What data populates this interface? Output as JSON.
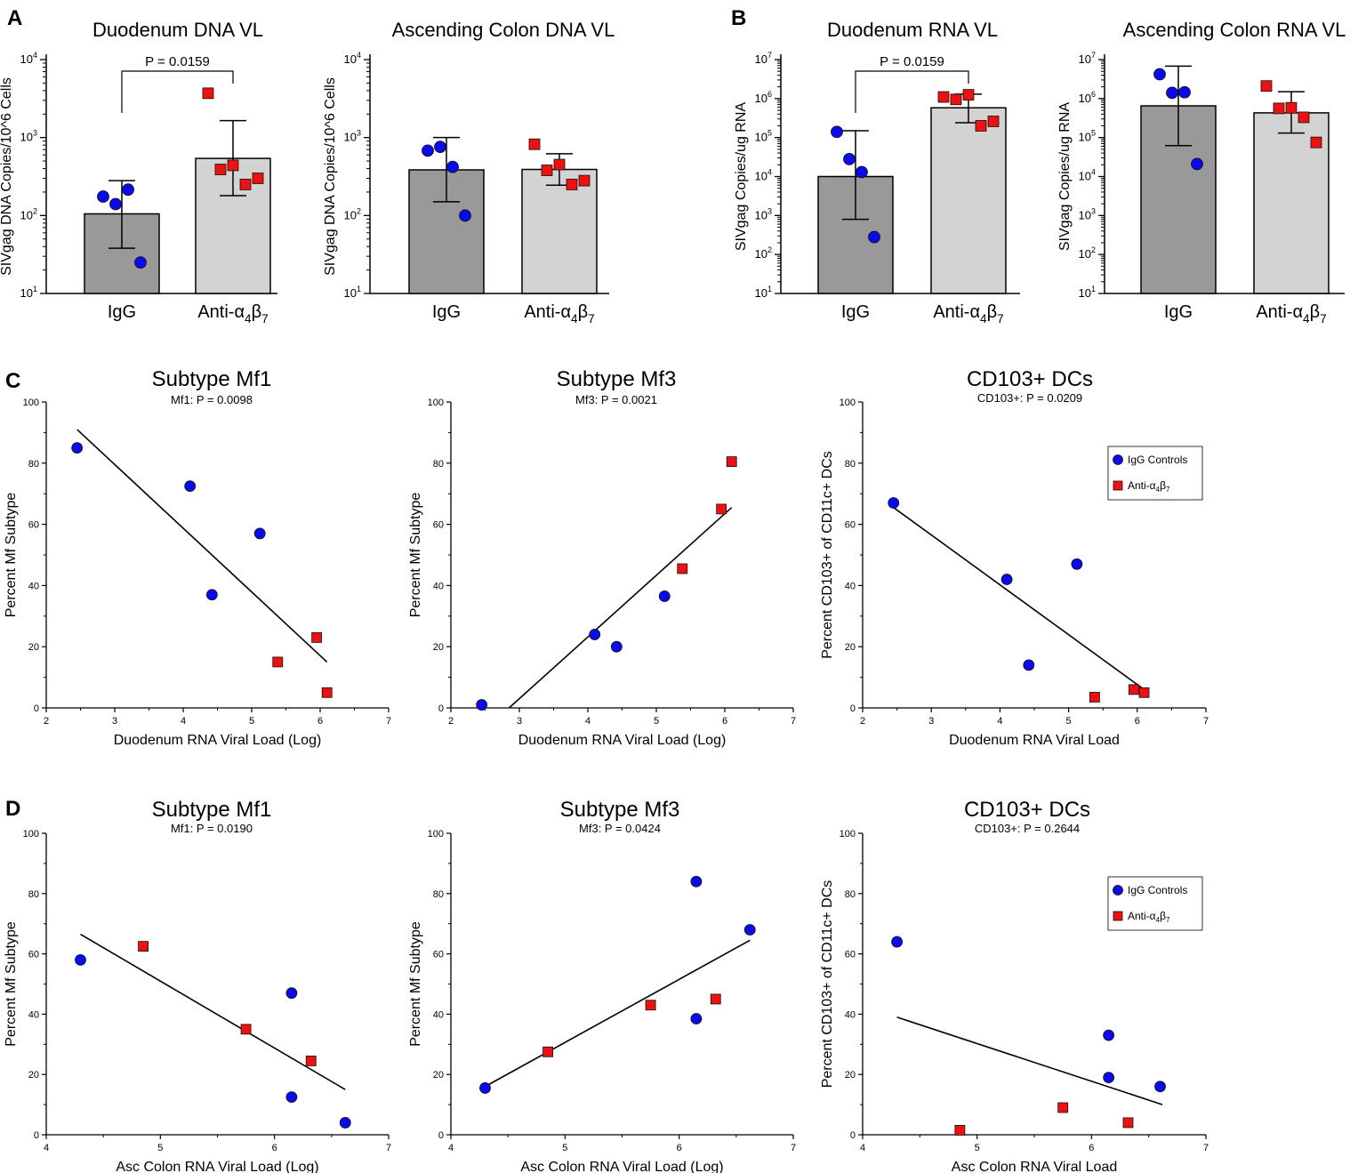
{
  "figure": {
    "colors": {
      "igg_bar": "#999999",
      "anti_bar": "#d3d3d3",
      "igg_marker": "#0a0aea",
      "anti_marker": "#ee1111",
      "axis": "#000000"
    },
    "markers": {
      "igg": "circle",
      "anti": "square"
    }
  },
  "chart_data": [
    {
      "id": "a1",
      "type": "bar",
      "panel_label": "A",
      "title": "Duodenum DNA VL",
      "ylabel": "SIVgag DNA Copies/10^6 Cells",
      "yscale": "log",
      "ylim_exp": [
        1,
        4
      ],
      "categories": [
        "IgG",
        "Anti-α4β7"
      ],
      "bars": [
        {
          "mean": 105,
          "err_lo": 38,
          "err_hi": 280,
          "points": [
            175,
            140,
            215,
            25
          ]
        },
        {
          "mean": 540,
          "err_lo": 180,
          "err_hi": 1650,
          "points": [
            3700,
            390,
            440,
            250,
            300
          ]
        }
      ],
      "annotation": "P = 0.0159"
    },
    {
      "id": "a2",
      "type": "bar",
      "title": "Ascending Colon DNA VL",
      "ylabel": "SIVgag DNA Copies/10^6 Cells",
      "yscale": "log",
      "ylim_exp": [
        1,
        4
      ],
      "categories": [
        "IgG",
        "Anti-α4β7"
      ],
      "bars": [
        {
          "mean": 385,
          "err_lo": 150,
          "err_hi": 1000,
          "points": [
            680,
            760,
            420,
            100
          ]
        },
        {
          "mean": 390,
          "err_lo": 245,
          "err_hi": 620,
          "points": [
            820,
            380,
            450,
            250,
            280
          ]
        }
      ]
    },
    {
      "id": "b1",
      "type": "bar",
      "panel_label": "B",
      "title": "Duodenum RNA VL",
      "ylabel": "SIVgag Copies/ug RNA",
      "yscale": "log",
      "ylim_exp": [
        1,
        7
      ],
      "categories": [
        "IgG",
        "Anti-α4β7"
      ],
      "bars": [
        {
          "mean": 10000,
          "err_lo": 800,
          "err_hi": 150000,
          "points": [
            140000,
            28000,
            13000,
            280
          ]
        },
        {
          "mean": 580000,
          "err_lo": 240000,
          "err_hi": 1300000,
          "points": [
            1100000,
            950000,
            1250000,
            200000,
            260000
          ]
        }
      ],
      "annotation": "P = 0.0159"
    },
    {
      "id": "b2",
      "type": "bar",
      "title": "Ascending Colon RNA VL",
      "ylabel": "SIVgag Copies/ug RNA",
      "yscale": "log",
      "ylim_exp": [
        1,
        7
      ],
      "categories": [
        "IgG",
        "Anti-α4β7"
      ],
      "bars": [
        {
          "mean": 650000,
          "err_lo": 62000,
          "err_hi": 6800000,
          "points": [
            4200000,
            1400000,
            1450000,
            21000
          ]
        },
        {
          "mean": 430000,
          "err_lo": 130000,
          "err_hi": 1500000,
          "points": [
            2100000,
            560000,
            580000,
            330000,
            75000
          ]
        }
      ]
    },
    {
      "id": "c1",
      "type": "scatter",
      "panel_label": "C",
      "title": "Subtype Mf1",
      "subtitle": "Mf1: P = 0.0098",
      "xlabel": "Duodenum RNA Viral Load (Log)",
      "ylabel": "Percent Mf Subtype",
      "xlim": [
        2,
        7
      ],
      "xticks": [
        2,
        3,
        4,
        5,
        6,
        7
      ],
      "ylim": [
        0,
        100
      ],
      "yticks": [
        0,
        20,
        40,
        60,
        80,
        100
      ],
      "series": [
        {
          "name": "IgG Controls",
          "points": [
            [
              2.45,
              85
            ],
            [
              4.1,
              72.5
            ],
            [
              4.42,
              37
            ],
            [
              5.12,
              57
            ]
          ]
        },
        {
          "name": "Anti-α4β7",
          "points": [
            [
              5.38,
              15
            ],
            [
              5.95,
              23
            ],
            [
              6.1,
              5
            ]
          ]
        }
      ],
      "fit": [
        [
          2.45,
          91
        ],
        [
          6.1,
          15
        ]
      ]
    },
    {
      "id": "c2",
      "type": "scatter",
      "title": "Subtype Mf3",
      "subtitle": "Mf3: P = 0.0021",
      "xlabel": "Duodenum RNA Viral Load (Log)",
      "ylabel": "Percent Mf Subtype",
      "xlim": [
        2,
        7
      ],
      "xticks": [
        2,
        3,
        4,
        5,
        6,
        7
      ],
      "ylim": [
        0,
        100
      ],
      "yticks": [
        0,
        20,
        40,
        60,
        80,
        100
      ],
      "series": [
        {
          "name": "IgG Controls",
          "points": [
            [
              2.45,
              1
            ],
            [
              4.1,
              24
            ],
            [
              4.42,
              20
            ],
            [
              5.12,
              36.5
            ]
          ]
        },
        {
          "name": "Anti-α4β7",
          "points": [
            [
              5.38,
              45.5
            ],
            [
              5.95,
              65
            ],
            [
              6.1,
              80.5
            ]
          ]
        }
      ],
      "fit": [
        [
          2.85,
          0
        ],
        [
          6.1,
          65.5
        ]
      ]
    },
    {
      "id": "c3",
      "type": "scatter",
      "title": "CD103+ DCs",
      "subtitle": "CD103+: P = 0.0209",
      "xlabel": "Duodenum RNA Viral Load",
      "ylabel": "Percent CD103+ of CD11c+ DCs",
      "xlim": [
        2,
        7
      ],
      "xticks": [
        2,
        3,
        4,
        5,
        6,
        7
      ],
      "ylim": [
        0,
        100
      ],
      "yticks": [
        0,
        20,
        40,
        60,
        80,
        100
      ],
      "series": [
        {
          "name": "IgG Controls",
          "points": [
            [
              2.45,
              67
            ],
            [
              4.1,
              42
            ],
            [
              4.42,
              14
            ],
            [
              5.12,
              47
            ]
          ]
        },
        {
          "name": "Anti-α4β7",
          "points": [
            [
              5.38,
              3.5
            ],
            [
              5.95,
              6
            ],
            [
              6.1,
              5
            ]
          ]
        }
      ],
      "fit": [
        [
          2.45,
          65.5
        ],
        [
          6.1,
          6
        ]
      ],
      "legend": {
        "placement": "top-right",
        "items": [
          "IgG Controls",
          "Anti-α4β7"
        ]
      }
    },
    {
      "id": "d1",
      "type": "scatter",
      "panel_label": "D",
      "title": "Subtype Mf1",
      "subtitle": "Mf1: P = 0.0190",
      "xlabel": "Asc Colon RNA Viral Load (Log)",
      "ylabel": "Percent Mf Subtype",
      "xlim": [
        4,
        7
      ],
      "xticks": [
        4,
        5,
        6,
        7
      ],
      "ylim": [
        0,
        100
      ],
      "yticks": [
        0,
        20,
        40,
        60,
        80,
        100
      ],
      "series": [
        {
          "name": "IgG Controls",
          "points": [
            [
              4.3,
              58
            ],
            [
              6.15,
              47
            ],
            [
              6.15,
              12.5
            ],
            [
              6.62,
              4
            ]
          ]
        },
        {
          "name": "Anti-α4β7",
          "points": [
            [
              4.85,
              62.5
            ],
            [
              5.75,
              35
            ],
            [
              6.32,
              24.5
            ]
          ]
        }
      ],
      "fit": [
        [
          4.3,
          66.5
        ],
        [
          6.62,
          15
        ]
      ]
    },
    {
      "id": "d2",
      "type": "scatter",
      "title": "Subtype Mf3",
      "subtitle": "Mf3: P = 0.0424",
      "xlabel": "Asc Colon RNA Viral Load (Log)",
      "ylabel": "Percent Mf Subtype",
      "xlim": [
        4,
        7
      ],
      "xticks": [
        4,
        5,
        6,
        7
      ],
      "ylim": [
        0,
        100
      ],
      "yticks": [
        0,
        20,
        40,
        60,
        80,
        100
      ],
      "series": [
        {
          "name": "IgG Controls",
          "points": [
            [
              4.3,
              15.5
            ],
            [
              6.15,
              84
            ],
            [
              6.15,
              38.5
            ],
            [
              6.62,
              68
            ]
          ]
        },
        {
          "name": "Anti-α4β7",
          "points": [
            [
              4.85,
              27.5
            ],
            [
              5.75,
              43
            ],
            [
              6.32,
              45
            ]
          ]
        }
      ],
      "fit": [
        [
          4.3,
          16
        ],
        [
          6.62,
          64.5
        ]
      ]
    },
    {
      "id": "d3",
      "type": "scatter",
      "title": "CD103+ DCs",
      "subtitle": "CD103+: P = 0.2644",
      "xlabel": "Asc Colon RNA Viral Load",
      "ylabel": "Percent CD103+ of CD11c+ DCs",
      "xlim": [
        4,
        7
      ],
      "xticks": [
        4,
        5,
        6,
        7
      ],
      "ylim": [
        0,
        100
      ],
      "yticks": [
        0,
        20,
        40,
        60,
        80,
        100
      ],
      "series": [
        {
          "name": "IgG Controls",
          "points": [
            [
              4.3,
              64
            ],
            [
              6.15,
              33
            ],
            [
              6.15,
              19
            ],
            [
              6.6,
              16
            ]
          ]
        },
        {
          "name": "Anti-α4β7",
          "points": [
            [
              4.85,
              1.5
            ],
            [
              5.75,
              9
            ],
            [
              6.32,
              4
            ]
          ]
        }
      ],
      "fit": [
        [
          4.3,
          39
        ],
        [
          6.62,
          10
        ]
      ],
      "legend": {
        "placement": "top-right",
        "items": [
          "IgG Controls",
          "Anti-α4β7"
        ]
      }
    }
  ]
}
